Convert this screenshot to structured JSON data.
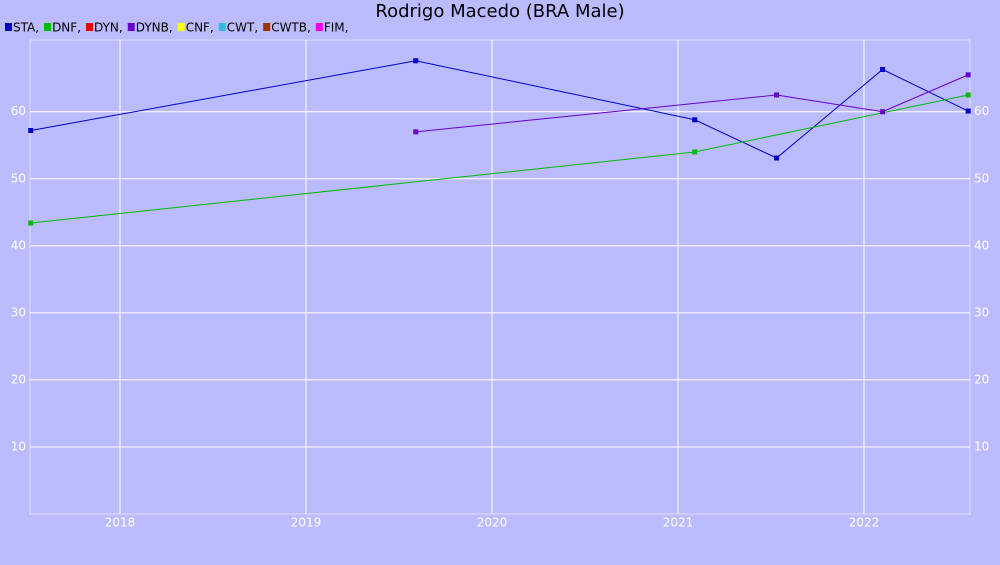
{
  "chart_data": {
    "type": "line",
    "title": "Rodrigo Macedo (BRA Male)",
    "legend_separator": ",",
    "xlim": [
      2017.516,
      2022.57
    ],
    "xticks": [
      2018,
      2019,
      2020,
      2021,
      2022
    ],
    "ylim": [
      0,
      70.7
    ],
    "yticks": [
      10,
      20,
      30,
      40,
      50,
      60
    ],
    "grid": true,
    "series": [
      {
        "name": "STA",
        "color": "#0000cc",
        "x": [
          2017.52,
          2019.59,
          2021.09,
          2021.53,
          2022.1,
          2022.56
        ],
        "values": [
          57.2,
          67.6,
          58.8,
          53.1,
          66.3,
          60.1
        ]
      },
      {
        "name": "DNF",
        "color": "#00bb00",
        "x": [
          2017.52,
          2021.09,
          2022.56
        ],
        "values": [
          43.4,
          54.0,
          62.5
        ]
      },
      {
        "name": "DYN",
        "color": "#ee0000",
        "x": [],
        "values": []
      },
      {
        "name": "DYNB",
        "color": "#6600cc",
        "x": [
          2019.59,
          2021.53,
          2022.1,
          2022.56
        ],
        "values": [
          57.0,
          62.5,
          60.0,
          65.5
        ]
      },
      {
        "name": "CNF",
        "color": "#ffff00",
        "x": [],
        "values": []
      },
      {
        "name": "CWT",
        "color": "#33bbdd",
        "x": [],
        "values": []
      },
      {
        "name": "CWTB",
        "color": "#993300",
        "x": [],
        "values": []
      },
      {
        "name": "FIM",
        "color": "#ee00ee",
        "x": [],
        "values": []
      }
    ]
  }
}
